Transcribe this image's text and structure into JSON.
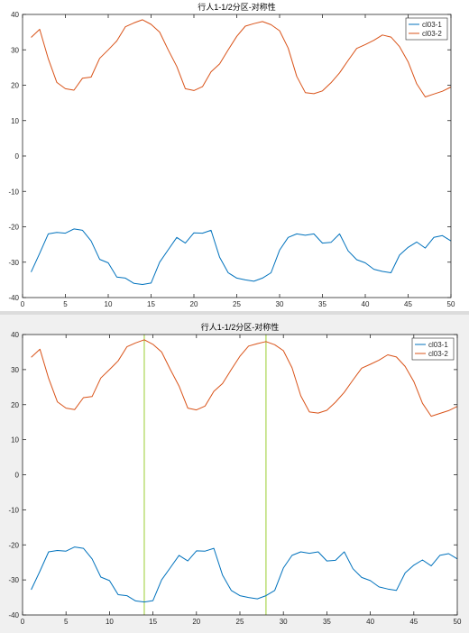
{
  "colors": {
    "series1": "#0072BD",
    "series2": "#D95319",
    "marker": "#9ACD32",
    "axes": "#262626"
  },
  "chart_data": [
    {
      "type": "line",
      "title": "行人1-1/2分区-对称性",
      "xlabel": "",
      "ylabel": "",
      "xlim": [
        0,
        50
      ],
      "ylim": [
        -40,
        40
      ],
      "xticks": [
        0,
        5,
        10,
        15,
        20,
        25,
        30,
        35,
        40,
        45,
        50
      ],
      "yticks": [
        -40,
        -30,
        -20,
        -10,
        0,
        10,
        20,
        30,
        40
      ],
      "grid": false,
      "legend_position": "top-right",
      "vlines": [],
      "series": [
        {
          "name": "cl03-1",
          "x": [
            1,
            2,
            3,
            4,
            5,
            6,
            7,
            8,
            9,
            10,
            11,
            12,
            13,
            14,
            15,
            16,
            17,
            18,
            19,
            20,
            21,
            22,
            23,
            24,
            25,
            26,
            27,
            28,
            29,
            30,
            31,
            32,
            33,
            34,
            35,
            36,
            37,
            38,
            39,
            40,
            41,
            42,
            43,
            44,
            45,
            46,
            47,
            48,
            49,
            50
          ],
          "values": [
            -32.8,
            -27.5,
            -22.0,
            -21.6,
            -21.8,
            -20.6,
            -21.0,
            -24.0,
            -29.2,
            -30.2,
            -34.2,
            -34.5,
            -36.0,
            -36.3,
            -35.9,
            -30.0,
            -26.5,
            -23.0,
            -24.6,
            -21.7,
            -21.8,
            -21.0,
            -28.6,
            -33.0,
            -34.5,
            -35.0,
            -35.4,
            -34.5,
            -33.0,
            -26.6,
            -23.0,
            -22.0,
            -22.4,
            -22.0,
            -24.6,
            -24.4,
            -22.0,
            -26.8,
            -29.3,
            -30.2,
            -32.0,
            -32.6,
            -33.0,
            -28.0,
            -25.8,
            -24.3,
            -26.0,
            -23.0,
            -22.5,
            -24.0
          ]
        },
        {
          "name": "cl03-2",
          "x": [
            1,
            2,
            3,
            4,
            5,
            6,
            7,
            8,
            9,
            10,
            11,
            12,
            13,
            14,
            15,
            16,
            17,
            18,
            19,
            20,
            21,
            22,
            23,
            24,
            25,
            26,
            27,
            28,
            29,
            30,
            31,
            32,
            33,
            34,
            35,
            36,
            37,
            38,
            39,
            40,
            41,
            42,
            43,
            44,
            45,
            46,
            47,
            48,
            49,
            50
          ],
          "values": [
            33.5,
            35.8,
            27.5,
            20.8,
            19.0,
            18.6,
            22.0,
            22.3,
            27.6,
            30.0,
            32.5,
            36.5,
            37.6,
            38.5,
            37.2,
            35.0,
            30.0,
            25.3,
            19.0,
            18.5,
            19.6,
            23.8,
            26.0,
            30.0,
            33.8,
            36.7,
            37.4,
            38.0,
            37.1,
            35.4,
            30.5,
            22.5,
            17.9,
            17.6,
            18.4,
            20.7,
            23.5,
            27.0,
            30.4,
            31.5,
            32.7,
            34.2,
            33.6,
            30.9,
            26.6,
            20.4,
            16.7,
            17.5,
            18.3,
            19.5
          ]
        }
      ]
    },
    {
      "type": "line",
      "title": "行人1-1/2分区-对称性",
      "xlabel": "",
      "ylabel": "",
      "xlim": [
        0,
        50
      ],
      "ylim": [
        -40,
        40
      ],
      "xticks": [
        0,
        5,
        10,
        15,
        20,
        25,
        30,
        35,
        40,
        45,
        50
      ],
      "yticks": [
        -40,
        -30,
        -20,
        -10,
        0,
        10,
        20,
        30,
        40
      ],
      "grid": false,
      "legend_position": "top-right",
      "vlines": [
        14,
        28
      ],
      "series": [
        {
          "name": "cl03-1",
          "x": [
            1,
            2,
            3,
            4,
            5,
            6,
            7,
            8,
            9,
            10,
            11,
            12,
            13,
            14,
            15,
            16,
            17,
            18,
            19,
            20,
            21,
            22,
            23,
            24,
            25,
            26,
            27,
            28,
            29,
            30,
            31,
            32,
            33,
            34,
            35,
            36,
            37,
            38,
            39,
            40,
            41,
            42,
            43,
            44,
            45,
            46,
            47,
            48,
            49,
            50
          ],
          "values": [
            -32.8,
            -27.5,
            -22.0,
            -21.6,
            -21.8,
            -20.6,
            -21.0,
            -24.0,
            -29.2,
            -30.2,
            -34.2,
            -34.5,
            -36.0,
            -36.3,
            -35.9,
            -30.0,
            -26.5,
            -23.0,
            -24.6,
            -21.7,
            -21.8,
            -21.0,
            -28.6,
            -33.0,
            -34.5,
            -35.0,
            -35.4,
            -34.5,
            -33.0,
            -26.6,
            -23.0,
            -22.0,
            -22.4,
            -22.0,
            -24.6,
            -24.4,
            -22.0,
            -26.8,
            -29.3,
            -30.2,
            -32.0,
            -32.6,
            -33.0,
            -28.0,
            -25.8,
            -24.3,
            -26.0,
            -23.0,
            -22.5,
            -24.0
          ]
        },
        {
          "name": "cl03-2",
          "x": [
            1,
            2,
            3,
            4,
            5,
            6,
            7,
            8,
            9,
            10,
            11,
            12,
            13,
            14,
            15,
            16,
            17,
            18,
            19,
            20,
            21,
            22,
            23,
            24,
            25,
            26,
            27,
            28,
            29,
            30,
            31,
            32,
            33,
            34,
            35,
            36,
            37,
            38,
            39,
            40,
            41,
            42,
            43,
            44,
            45,
            46,
            47,
            48,
            49,
            50
          ],
          "values": [
            33.5,
            35.8,
            27.5,
            20.8,
            19.0,
            18.6,
            22.0,
            22.3,
            27.6,
            30.0,
            32.5,
            36.5,
            37.6,
            38.5,
            37.2,
            35.0,
            30.0,
            25.3,
            19.0,
            18.5,
            19.6,
            23.8,
            26.0,
            30.0,
            33.8,
            36.7,
            37.4,
            38.0,
            37.1,
            35.4,
            30.5,
            22.5,
            17.9,
            17.6,
            18.4,
            20.7,
            23.5,
            27.0,
            30.4,
            31.5,
            32.7,
            34.2,
            33.6,
            30.9,
            26.6,
            20.4,
            16.7,
            17.5,
            18.3,
            19.5
          ]
        }
      ]
    }
  ]
}
